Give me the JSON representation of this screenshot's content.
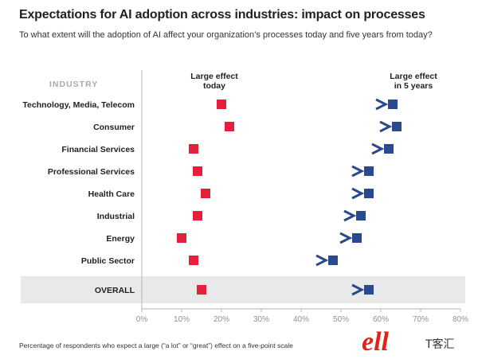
{
  "title": "Expectations for AI adoption across industries: impact on processes",
  "subtitle": "To what extent will the adoption of AI affect your organization’s processes today and five years from today?",
  "footnote": "Percentage of respondents who expect a large (“a lot” or “great”) effect on a five-point scale",
  "watermark": {
    "text": "T客汇",
    "glyph": "ell"
  },
  "colors": {
    "today": "#e4203a",
    "five_years": "#2a4a8f",
    "arrow_start": "#e4203a",
    "arrow_end": "#2b4a8c",
    "overall_band": "#e9e9ea"
  },
  "chart_data": {
    "type": "dumbbell",
    "category_header": "INDUSTRY",
    "series": [
      {
        "name": "Large effect today",
        "key": "today"
      },
      {
        "name": "Large effect in 5 years",
        "key": "five_years"
      }
    ],
    "series_labels": {
      "today": [
        "Large effect",
        "today"
      ],
      "five_years": [
        "Large effect",
        "in 5 years"
      ]
    },
    "xlim": [
      0,
      80
    ],
    "xticks": [
      "0%",
      "10%",
      "20%",
      "30%",
      "40%",
      "50%",
      "60%",
      "70%",
      "80%"
    ],
    "rows": [
      {
        "category": "Technology, Media, Telecom",
        "today": 20,
        "five_years": 63
      },
      {
        "category": "Consumer",
        "today": 22,
        "five_years": 64
      },
      {
        "category": "Financial Services",
        "today": 13,
        "five_years": 62
      },
      {
        "category": "Professional Services",
        "today": 14,
        "five_years": 57
      },
      {
        "category": "Health Care",
        "today": 16,
        "five_years": 57
      },
      {
        "category": "Industrial",
        "today": 14,
        "five_years": 55
      },
      {
        "category": "Energy",
        "today": 10,
        "five_years": 54
      },
      {
        "category": "Public Sector",
        "today": 13,
        "five_years": 48
      },
      {
        "category": "OVERALL",
        "today": 15,
        "five_years": 57,
        "highlight": true
      }
    ]
  }
}
